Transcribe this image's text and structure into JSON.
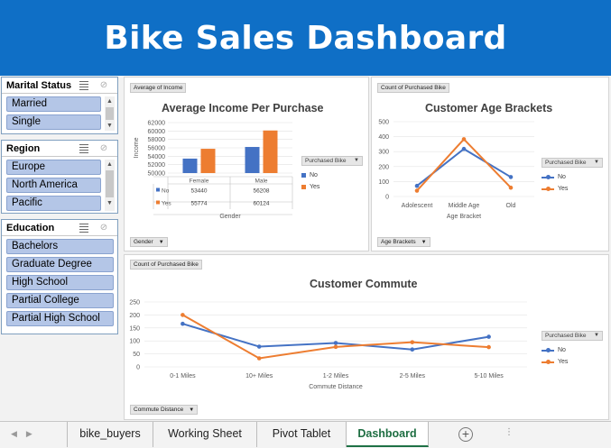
{
  "dashboard": {
    "title": "Bike Sales Dashboard"
  },
  "slicers": {
    "marital": {
      "title": "Marital Status",
      "items": [
        "Married",
        "Single"
      ]
    },
    "region": {
      "title": "Region",
      "items": [
        "Europe",
        "North America",
        "Pacific"
      ]
    },
    "education": {
      "title": "Education",
      "items": [
        "Bachelors",
        "Graduate Degree",
        "High School",
        "Partial College",
        "Partial High School"
      ]
    }
  },
  "income_chart": {
    "value_button": "Average of Income",
    "axis_button": "Gender",
    "legend_button": "Purchased Bike",
    "table_headers": [
      "Female",
      "Male"
    ],
    "row_labels": [
      "No",
      "Yes"
    ]
  },
  "age_chart": {
    "value_button": "Count of Purchased Bike",
    "axis_button": "Age Brackets",
    "legend_button": "Purchased Bike"
  },
  "commute_chart": {
    "value_button": "Count of Purchased Bike",
    "axis_button": "Commute Distance",
    "legend_button": "Purchased Bike"
  },
  "colors": {
    "no": "#4472c4",
    "yes": "#ed7d31",
    "banner": "#0f6fc6",
    "slicer_item": "#b4c6e7"
  },
  "chart_data": [
    {
      "type": "bar",
      "title": "Average Income Per Purchase",
      "xlabel": "Gender",
      "ylabel": "Income",
      "categories": [
        "Female",
        "Male"
      ],
      "series": [
        {
          "name": "No",
          "values": [
            53440,
            56208
          ]
        },
        {
          "name": "Yes",
          "values": [
            55774,
            60124
          ]
        }
      ],
      "ylim": [
        50000,
        62000
      ],
      "yticks": [
        50000,
        52000,
        54000,
        56000,
        58000,
        60000,
        62000
      ],
      "legend": "right"
    },
    {
      "type": "line",
      "title": "Customer Age Brackets",
      "xlabel": "Age Bracket",
      "ylabel": "",
      "categories": [
        "Adolescent",
        "Middle Age",
        "Old"
      ],
      "series": [
        {
          "name": "No",
          "values": [
            71,
            318,
            130
          ]
        },
        {
          "name": "Yes",
          "values": [
            39,
            383,
            59
          ]
        }
      ],
      "ylim": [
        0,
        500
      ],
      "yticks": [
        0,
        100,
        200,
        300,
        400,
        500
      ],
      "legend": "right"
    },
    {
      "type": "line",
      "title": "Customer Commute",
      "xlabel": "Commute Distance",
      "ylabel": "",
      "categories": [
        "0-1 Miles",
        "10+ Miles",
        "1-2 Miles",
        "2-5 Miles",
        "5-10 Miles"
      ],
      "series": [
        {
          "name": "No",
          "values": [
            166,
            78,
            92,
            67,
            116
          ]
        },
        {
          "name": "Yes",
          "values": [
            200,
            33,
            77,
            95,
            76
          ]
        }
      ],
      "ylim": [
        0,
        250
      ],
      "yticks": [
        0,
        50,
        100,
        150,
        200,
        250
      ],
      "legend": "right"
    }
  ],
  "tabs": [
    "bike_buyers",
    "Working Sheet",
    "Pivot Tablet",
    "Dashboard"
  ],
  "active_tab": "Dashboard"
}
